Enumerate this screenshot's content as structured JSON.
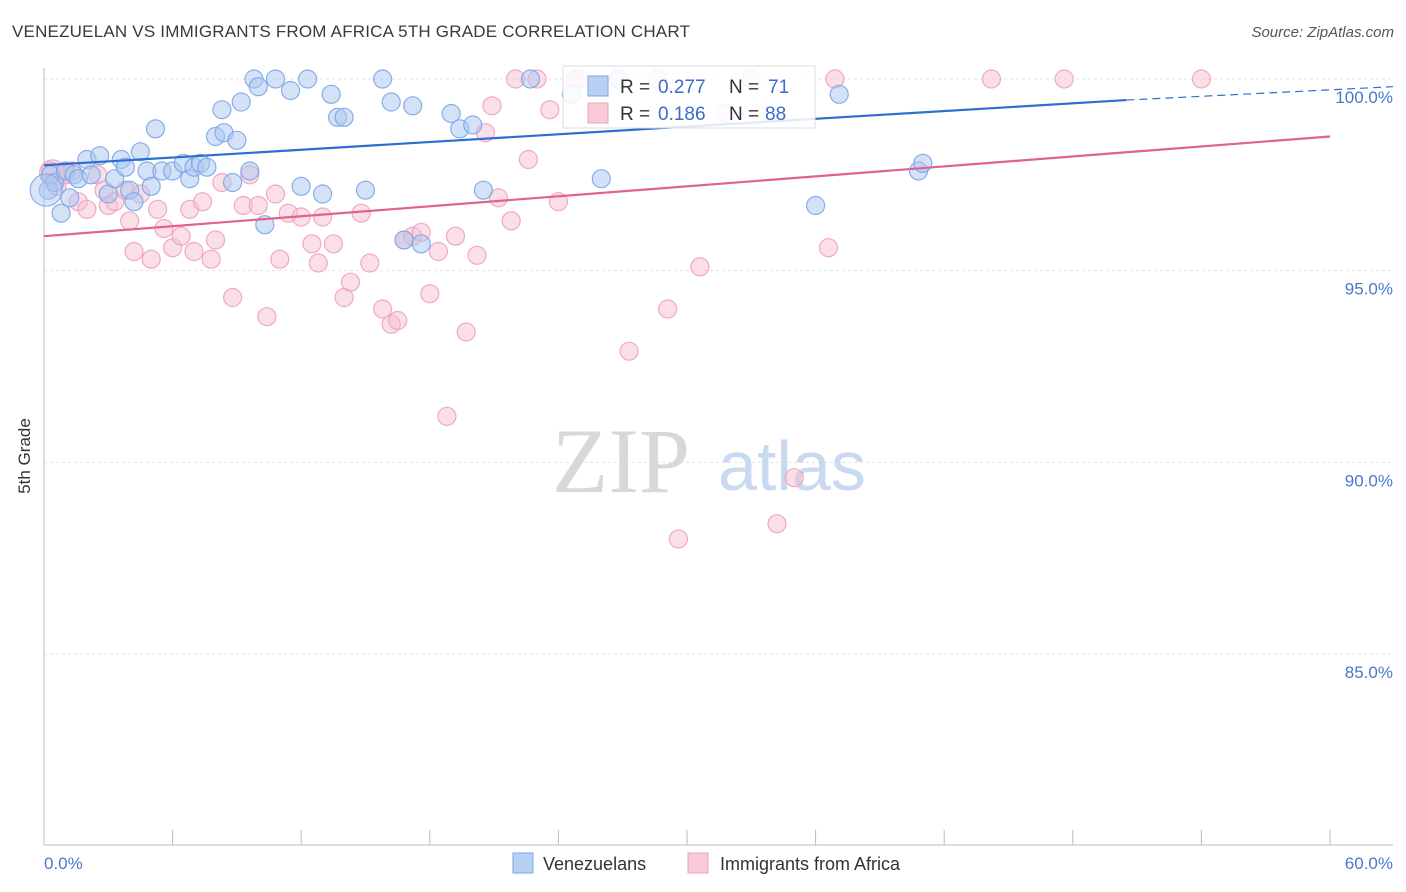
{
  "title": "VENEZUELAN VS IMMIGRANTS FROM AFRICA 5TH GRADE CORRELATION CHART",
  "source": "Source: ZipAtlas.com",
  "watermark": {
    "zip": "ZIP",
    "atlas": "atlas"
  },
  "chart_data": {
    "type": "scatter",
    "xlabel": "",
    "ylabel": "5th Grade",
    "xlim": [
      0,
      60
    ],
    "ylim": [
      80.5,
      100.8
    ],
    "x_tick_labels": [
      "0.0%",
      "60.0%"
    ],
    "y_ticks": [
      100,
      95,
      90,
      85
    ],
    "y_tick_labels": [
      "100.0%",
      "95.0%",
      "90.0%",
      "85.0%"
    ],
    "legend": {
      "position": "top-center",
      "entries": [
        {
          "r_label": "R =",
          "r_value": "0.277",
          "n_label": "N =",
          "n_value": "71"
        },
        {
          "r_label": "R =",
          "r_value": "0.186",
          "n_label": "N =",
          "n_value": "88"
        }
      ]
    },
    "series": [
      {
        "name": "Venezuelans",
        "color": "#7aa6e8",
        "line_color": "#2d6fd0",
        "trend": {
          "x0": 0,
          "y0": 97.75,
          "x1": 50.5,
          "y1": 99.45,
          "dash_to_x": 60,
          "dash_to_y": 99.8
        },
        "points": [
          [
            0.2,
            97.1
          ],
          [
            0.3,
            97.5
          ],
          [
            0.5,
            97.3
          ],
          [
            0.8,
            96.5
          ],
          [
            1.0,
            97.6
          ],
          [
            1.2,
            96.9
          ],
          [
            1.4,
            97.5
          ],
          [
            1.6,
            97.4
          ],
          [
            2.0,
            97.9
          ],
          [
            2.2,
            97.5
          ],
          [
            2.6,
            98.0
          ],
          [
            3.0,
            97.0
          ],
          [
            3.3,
            97.4
          ],
          [
            3.6,
            97.9
          ],
          [
            3.8,
            97.7
          ],
          [
            4.0,
            97.1
          ],
          [
            4.2,
            96.8
          ],
          [
            4.5,
            98.1
          ],
          [
            4.8,
            97.6
          ],
          [
            5.0,
            97.2
          ],
          [
            5.2,
            98.7
          ],
          [
            5.5,
            97.6
          ],
          [
            6.0,
            97.6
          ],
          [
            6.5,
            97.8
          ],
          [
            6.8,
            97.4
          ],
          [
            7.0,
            97.7
          ],
          [
            7.3,
            97.8
          ],
          [
            7.6,
            97.7
          ],
          [
            8.0,
            98.5
          ],
          [
            8.4,
            98.6
          ],
          [
            8.3,
            99.2
          ],
          [
            8.8,
            97.3
          ],
          [
            9.0,
            98.4
          ],
          [
            9.2,
            99.4
          ],
          [
            9.6,
            97.6
          ],
          [
            9.8,
            100.0
          ],
          [
            10.0,
            99.8
          ],
          [
            10.3,
            96.2
          ],
          [
            10.8,
            100.0
          ],
          [
            11.5,
            99.7
          ],
          [
            12.0,
            97.2
          ],
          [
            12.3,
            100.0
          ],
          [
            13.0,
            97.0
          ],
          [
            13.4,
            99.6
          ],
          [
            13.7,
            99.0
          ],
          [
            14.0,
            99.0
          ],
          [
            15.0,
            97.1
          ],
          [
            15.8,
            100.0
          ],
          [
            16.2,
            99.4
          ],
          [
            16.8,
            95.8
          ],
          [
            17.2,
            99.3
          ],
          [
            17.6,
            95.7
          ],
          [
            19.0,
            99.1
          ],
          [
            19.4,
            98.7
          ],
          [
            20.0,
            98.8
          ],
          [
            20.5,
            97.1
          ],
          [
            22.7,
            100.0
          ],
          [
            24.6,
            99.6
          ],
          [
            26.0,
            97.4
          ],
          [
            26.8,
            100.0
          ],
          [
            36.0,
            96.7
          ],
          [
            37.1,
            99.6
          ],
          [
            40.8,
            97.6
          ],
          [
            41.0,
            97.8
          ]
        ]
      },
      {
        "name": "Immigrants from Africa",
        "color": "#f2a0ba",
        "line_color": "#e0638e",
        "trend": {
          "x0": 0,
          "y0": 95.9,
          "x1": 60,
          "y1": 98.5
        },
        "points": [
          [
            0.3,
            97.6
          ],
          [
            0.6,
            97.2
          ],
          [
            1.0,
            97.5
          ],
          [
            1.3,
            97.6
          ],
          [
            1.6,
            96.8
          ],
          [
            2.0,
            96.6
          ],
          [
            2.5,
            97.5
          ],
          [
            2.8,
            97.1
          ],
          [
            3.0,
            96.7
          ],
          [
            3.3,
            96.8
          ],
          [
            3.8,
            97.1
          ],
          [
            4.0,
            96.3
          ],
          [
            4.2,
            95.5
          ],
          [
            4.5,
            97.0
          ],
          [
            5.0,
            95.3
          ],
          [
            5.3,
            96.6
          ],
          [
            5.6,
            96.1
          ],
          [
            6.0,
            95.6
          ],
          [
            6.4,
            95.9
          ],
          [
            6.8,
            96.6
          ],
          [
            7.0,
            95.5
          ],
          [
            7.4,
            96.8
          ],
          [
            7.8,
            95.3
          ],
          [
            8.0,
            95.8
          ],
          [
            8.3,
            97.3
          ],
          [
            8.8,
            94.3
          ],
          [
            9.3,
            96.7
          ],
          [
            9.6,
            97.5
          ],
          [
            10.0,
            96.7
          ],
          [
            10.4,
            93.8
          ],
          [
            10.8,
            97.0
          ],
          [
            11.0,
            95.3
          ],
          [
            11.4,
            96.5
          ],
          [
            12.0,
            96.4
          ],
          [
            12.5,
            95.7
          ],
          [
            12.8,
            95.2
          ],
          [
            13.0,
            96.4
          ],
          [
            13.5,
            95.7
          ],
          [
            14.0,
            94.3
          ],
          [
            14.3,
            94.7
          ],
          [
            14.8,
            96.5
          ],
          [
            15.2,
            95.2
          ],
          [
            15.8,
            94.0
          ],
          [
            16.2,
            93.6
          ],
          [
            16.5,
            93.7
          ],
          [
            16.8,
            95.8
          ],
          [
            17.2,
            95.9
          ],
          [
            17.6,
            96.0
          ],
          [
            18.0,
            94.4
          ],
          [
            18.4,
            95.5
          ],
          [
            18.8,
            91.2
          ],
          [
            19.2,
            95.9
          ],
          [
            19.7,
            93.4
          ],
          [
            20.2,
            95.4
          ],
          [
            20.6,
            98.6
          ],
          [
            20.9,
            99.3
          ],
          [
            21.2,
            96.9
          ],
          [
            21.8,
            96.3
          ],
          [
            22.0,
            100.0
          ],
          [
            22.6,
            97.9
          ],
          [
            23.0,
            100.0
          ],
          [
            23.6,
            99.2
          ],
          [
            24.0,
            96.8
          ],
          [
            24.8,
            100.0
          ],
          [
            25.0,
            100.0
          ],
          [
            27.3,
            92.9
          ],
          [
            28.6,
            100.0
          ],
          [
            29.1,
            94.0
          ],
          [
            29.6,
            88.0
          ],
          [
            30.6,
            95.1
          ],
          [
            31.8,
            99.1
          ],
          [
            33.0,
            100.0
          ],
          [
            34.2,
            88.4
          ],
          [
            35.0,
            89.6
          ],
          [
            36.6,
            95.6
          ],
          [
            36.9,
            100.0
          ],
          [
            44.2,
            100.0
          ],
          [
            47.6,
            100.0
          ],
          [
            54.0,
            100.0
          ]
        ]
      }
    ]
  }
}
